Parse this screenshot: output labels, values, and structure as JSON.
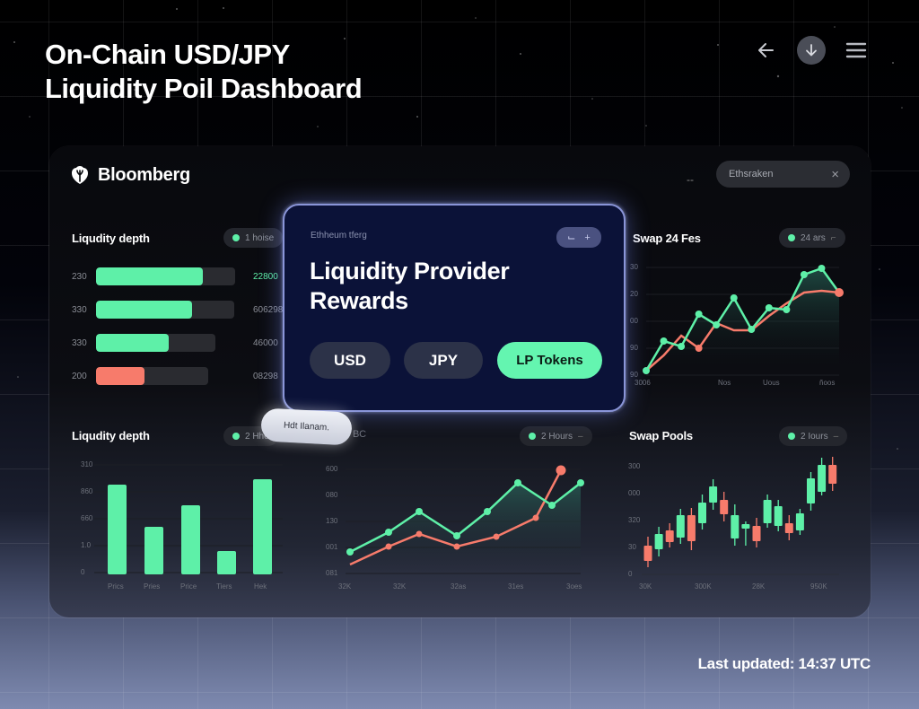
{
  "page": {
    "title": "On-Chain USD/JPY\nLiquidity Poil Dashboard",
    "last_updated": "Last updated: 14:37 UTC"
  },
  "top_icons": [
    "back-arrow-icon",
    "download-icon",
    "menu-icon"
  ],
  "panel": {
    "brand": "Bloomberg",
    "dash": "--",
    "search": {
      "placeholder": "Ethsraken",
      "clear": "×"
    }
  },
  "colors": {
    "accent_green": "#5ef0a8",
    "accent_red": "#f77b6b",
    "modal_bg": "#0b1238",
    "modal_border": "#8a95d8"
  },
  "liquidity_depth_top": {
    "title": "Liqudity depth",
    "chip": "1 hoise",
    "rows": [
      {
        "label": "230",
        "fill": 119,
        "track": 155,
        "color": "#5ef0a8",
        "value": "22800",
        "value_color": "#5ef0a8"
      },
      {
        "label": "330",
        "fill": 107,
        "track": 154,
        "color": "#5ef0a8",
        "value": "606298",
        "value_color": "#8a8d95"
      },
      {
        "label": "330",
        "fill": 81,
        "track": 133,
        "color": "#5ef0a8",
        "value": "46000",
        "value_color": "#8a8d95"
      },
      {
        "label": "200",
        "fill": 54,
        "track": 125,
        "color": "#f77b6b",
        "value": "08298",
        "value_color": "#8a8d95"
      }
    ]
  },
  "modal": {
    "subtitle": "Ethheum tferg",
    "control": [
      "⌙",
      "+"
    ],
    "title": "Liquidity Provider\nRewards",
    "buttons": [
      {
        "label": "USD",
        "active": false
      },
      {
        "label": "JPY",
        "active": false
      },
      {
        "label": "LP Tokens",
        "active": true
      }
    ]
  },
  "tooltip": {
    "text": "Hdt Ilanam."
  },
  "swap_fees": {
    "title": "Swap 24 Fes",
    "chip": "24 ars",
    "y_ticks": [
      "30",
      "20",
      "00",
      "90",
      "90"
    ],
    "x_ticks": [
      "3006",
      "Nos",
      "Uous",
      "ñoos"
    ]
  },
  "liquidity_depth_bottom": {
    "title": "Liqudity depth",
    "chip": "2 Hhe",
    "y_ticks": [
      "310",
      "860",
      "660",
      "1.0",
      "0"
    ],
    "x_ticks": [
      "Prics",
      "Pries",
      "Price",
      "Tiers",
      "Hek"
    ]
  },
  "middle_line": {
    "chip": "2 Hours",
    "behind_text": "BC",
    "y_ticks": [
      "600",
      "080",
      "130",
      "001",
      "081"
    ],
    "x_ticks": [
      "32K",
      "32K",
      "32as",
      "31es",
      "3oes"
    ]
  },
  "swap_pools": {
    "title": "Swap Pools",
    "chip": "2 Iours",
    "y_ticks": [
      "300",
      "000",
      "320",
      "30",
      "0"
    ],
    "x_ticks": [
      "30K",
      "300K",
      "28K",
      "950K"
    ]
  },
  "chart_data": [
    {
      "type": "bar",
      "title": "Liqudity depth",
      "orientation": "horizontal",
      "categories": [
        "230",
        "330",
        "330",
        "200"
      ],
      "values": [
        77,
        69,
        61,
        43
      ],
      "value_labels": [
        "22800",
        "606298",
        "46000",
        "08298"
      ]
    },
    {
      "type": "line",
      "title": "Swap 24 Fes",
      "y_ticks": [
        "90",
        "90",
        "00",
        "20",
        "30"
      ],
      "x_ticks": [
        "3006",
        "Nos",
        "Uous",
        "ñoos"
      ],
      "series": [
        {
          "name": "green",
          "color": "#5ef0a8",
          "values": [
            5,
            38,
            32,
            68,
            56,
            86,
            51,
            75,
            73,
            112,
            119,
            92
          ]
        },
        {
          "name": "red",
          "color": "#f77b6b",
          "values": [
            5,
            22,
            44,
            30,
            58,
            50,
            50,
            66,
            80,
            92,
            94,
            92
          ]
        }
      ]
    },
    {
      "type": "bar",
      "title": "Liqudity depth",
      "categories": [
        "Prics",
        "Pries",
        "Price",
        "Tiers",
        "Hek"
      ],
      "values": [
        100,
        53,
        77,
        26,
        106
      ],
      "y_ticks": [
        "0",
        "1.0",
        "660",
        "860",
        "310"
      ]
    },
    {
      "type": "line",
      "title": "",
      "y_ticks": [
        "081",
        "001",
        "130",
        "080",
        "600"
      ],
      "x_ticks": [
        "32K",
        "32K",
        "32as",
        "31es",
        "3oes"
      ],
      "series": [
        {
          "name": "green",
          "color": "#5ef0a8",
          "values": [
            26,
            48,
            71,
            44,
            71,
            103,
            78,
            103
          ]
        },
        {
          "name": "red",
          "color": "#f77b6b",
          "values": [
            12,
            32,
            46,
            32,
            43,
            64,
            117
          ]
        }
      ]
    },
    {
      "type": "candlestick",
      "title": "Swap Pools",
      "y_ticks": [
        "0",
        "30",
        "320",
        "000",
        "300"
      ],
      "x_ticks": [
        "30K",
        "300K",
        "28K",
        "950K"
      ],
      "candles": [
        {
          "o": 32,
          "c": 15,
          "h": 42,
          "l": 8,
          "up": false
        },
        {
          "o": 28,
          "c": 45,
          "h": 53,
          "l": 20,
          "up": true
        },
        {
          "o": 49,
          "c": 36,
          "h": 57,
          "l": 30,
          "up": false
        },
        {
          "o": 41,
          "c": 66,
          "h": 73,
          "l": 34,
          "up": true
        },
        {
          "o": 66,
          "c": 37,
          "h": 74,
          "l": 27,
          "up": false
        },
        {
          "o": 57,
          "c": 80,
          "h": 89,
          "l": 50,
          "up": true
        },
        {
          "o": 80,
          "c": 98,
          "h": 106,
          "l": 72,
          "up": true
        },
        {
          "o": 83,
          "c": 67,
          "h": 92,
          "l": 59,
          "up": false
        },
        {
          "o": 40,
          "c": 66,
          "h": 78,
          "l": 32,
          "up": true
        },
        {
          "o": 51,
          "c": 56,
          "h": 59,
          "l": 32,
          "up": true
        },
        {
          "o": 54,
          "c": 37,
          "h": 63,
          "l": 30,
          "up": false
        },
        {
          "o": 57,
          "c": 83,
          "h": 89,
          "l": 52,
          "up": true
        },
        {
          "o": 54,
          "c": 76,
          "h": 83,
          "l": 48,
          "up": true
        },
        {
          "o": 57,
          "c": 46,
          "h": 66,
          "l": 38,
          "up": false
        },
        {
          "o": 49,
          "c": 68,
          "h": 73,
          "l": 44,
          "up": true
        },
        {
          "o": 79,
          "c": 107,
          "h": 114,
          "l": 71,
          "up": true
        },
        {
          "o": 92,
          "c": 122,
          "h": 130,
          "l": 88,
          "up": true
        },
        {
          "o": 122,
          "c": 101,
          "h": 131,
          "l": 93,
          "up": false
        }
      ]
    }
  ]
}
